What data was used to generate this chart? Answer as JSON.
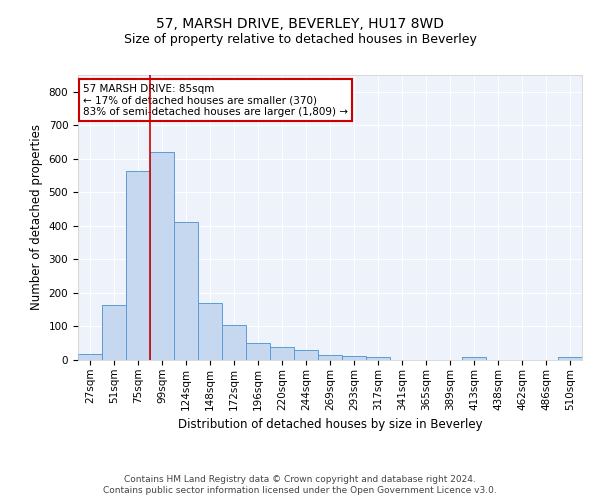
{
  "title": "57, MARSH DRIVE, BEVERLEY, HU17 8WD",
  "subtitle": "Size of property relative to detached houses in Beverley",
  "xlabel": "Distribution of detached houses by size in Beverley",
  "ylabel": "Number of detached properties",
  "bar_color": "#c5d8f0",
  "bar_edge_color": "#5b9bd5",
  "background_color": "#eef2fa",
  "grid_color": "#ffffff",
  "fig_background": "#ffffff",
  "categories": [
    "27sqm",
    "51sqm",
    "75sqm",
    "99sqm",
    "124sqm",
    "148sqm",
    "172sqm",
    "196sqm",
    "220sqm",
    "244sqm",
    "269sqm",
    "293sqm",
    "317sqm",
    "341sqm",
    "365sqm",
    "389sqm",
    "413sqm",
    "438sqm",
    "462sqm",
    "486sqm",
    "510sqm"
  ],
  "values": [
    18,
    165,
    565,
    620,
    412,
    170,
    103,
    50,
    38,
    30,
    14,
    13,
    10,
    0,
    0,
    0,
    8,
    0,
    0,
    0,
    8
  ],
  "ylim": [
    0,
    850
  ],
  "yticks": [
    0,
    100,
    200,
    300,
    400,
    500,
    600,
    700,
    800
  ],
  "vline_x_index": 2,
  "vline_color": "#cc0000",
  "annotation_line1": "57 MARSH DRIVE: 85sqm",
  "annotation_line2": "← 17% of detached houses are smaller (370)",
  "annotation_line3": "83% of semi-detached houses are larger (1,809) →",
  "annotation_box_color": "#ffffff",
  "annotation_box_edge_color": "#cc0000",
  "footer_line1": "Contains HM Land Registry data © Crown copyright and database right 2024.",
  "footer_line2": "Contains public sector information licensed under the Open Government Licence v3.0.",
  "title_fontsize": 10,
  "subtitle_fontsize": 9,
  "xlabel_fontsize": 8.5,
  "ylabel_fontsize": 8.5,
  "tick_fontsize": 7.5,
  "annotation_fontsize": 7.5,
  "footer_fontsize": 6.5
}
